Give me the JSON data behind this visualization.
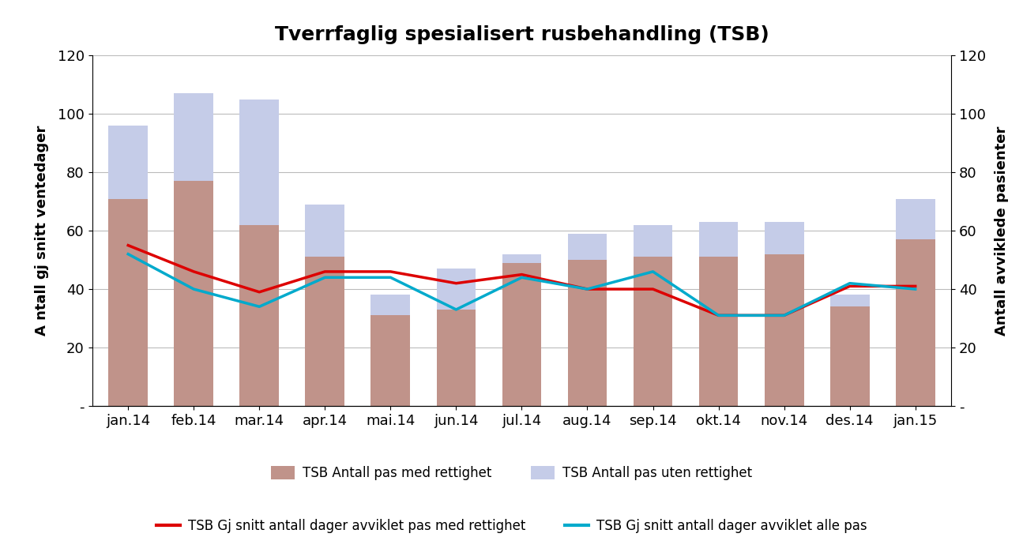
{
  "title": "Tverrfaglig spesialisert rusbehandling (TSB)",
  "categories": [
    "jan.14",
    "feb.14",
    "mar.14",
    "apr.14",
    "mai.14",
    "jun.14",
    "jul.14",
    "aug.14",
    "sep.14",
    "okt.14",
    "nov.14",
    "des.14",
    "jan.15"
  ],
  "bar_med_rettighet": [
    71,
    77,
    62,
    51,
    31,
    33,
    49,
    50,
    51,
    51,
    52,
    34,
    57
  ],
  "bar_uten_rettighet_extra": [
    25,
    30,
    43,
    18,
    7,
    14,
    3,
    9,
    11,
    12,
    11,
    4,
    14
  ],
  "line_med_rettighet": [
    55,
    46,
    39,
    46,
    46,
    42,
    45,
    40,
    40,
    31,
    31,
    41,
    41
  ],
  "line_alle": [
    52,
    40,
    34,
    44,
    44,
    33,
    44,
    40,
    46,
    31,
    31,
    42,
    40
  ],
  "bar_color_med": "#c0938a",
  "bar_color_uten": "#c5cce8",
  "line_color_med": "#dd0000",
  "line_color_alle": "#00aacc",
  "ylabel_left": "A ntall gj snitt ventedager",
  "ylabel_right": "Antall avviklede pasienter",
  "ylim": [
    0,
    120
  ],
  "yticks": [
    0,
    20,
    40,
    60,
    80,
    100,
    120
  ],
  "yticklabels": [
    "-",
    "20",
    "40",
    "60",
    "80",
    "100",
    "120"
  ],
  "legend1_label": "TSB Antall pas med rettighet",
  "legend2_label": "TSB Antall pas uten rettighet",
  "legend3_label": "TSB Gj snitt antall dager avviklet pas med rettighet",
  "legend4_label": "TSB Gj snitt antall dager avviklet alle pas",
  "background_color": "#ffffff",
  "grid_color": "#bbbbbb",
  "title_fontsize": 18,
  "axis_fontsize": 13,
  "tick_fontsize": 13,
  "legend_fontsize": 12
}
